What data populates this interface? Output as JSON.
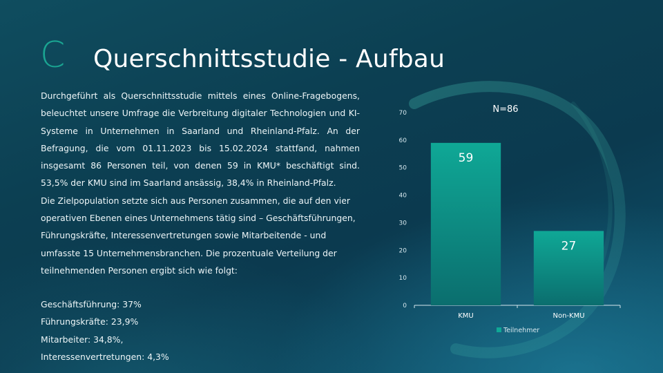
{
  "slide": {
    "title_letter": "C",
    "title": "Querschnittsstudie - Aufbau"
  },
  "body": {
    "paragraph1": "Durchgeführt als Querschnittsstudie mittels eines Online-Fragebogens, beleuchtet unsere Umfrage die Verbreitung digitaler Technologien und KI-Systeme in Unternehmen in Saarland und Rheinland-Pfalz. An der Befragung, die vom 01.11.2023 bis 15.02.2024 stattfand, nahmen insgesamt 86 Personen teil, von denen 59 in KMU* beschäftigt sind. 53,5% der KMU sind im Saarland ansässig, 38,4% in Rheinland-Pfalz.",
    "paragraph2": "Die Zielpopulation setzte sich aus Personen zusammen, die auf den vier operativen Ebenen eines Unternehmens tätig sind – Geschäftsführungen, Führungskräfte, Interessenvertretungen sowie Mitarbeitende  - und umfasste 15 Unternehmensbranchen. Die prozentuale Verteilung der teilnehmenden Personen ergibt sich wie folgt:",
    "stats": [
      "Geschäftsführung: 37%",
      "Führungskräfte: 23,9%",
      "Mitarbeiter: 34,8%,",
      "Interessenvertretungen:  4,3%"
    ]
  },
  "colors": {
    "accent": "#1aa592",
    "bar_top": "#0fa896",
    "bar_bottom": "#0b6e6e",
    "text": "#ffffff"
  },
  "chart_data": {
    "type": "bar",
    "annotation": "N=86",
    "categories": [
      "KMU",
      "Non-KMU"
    ],
    "series": [
      {
        "name": "Teilnehmer",
        "values": [
          59,
          27
        ]
      }
    ],
    "ylim": [
      0,
      70
    ],
    "yticks": [
      0,
      10,
      20,
      30,
      40,
      50,
      60,
      70
    ],
    "legend": "bottom",
    "grid": false
  }
}
